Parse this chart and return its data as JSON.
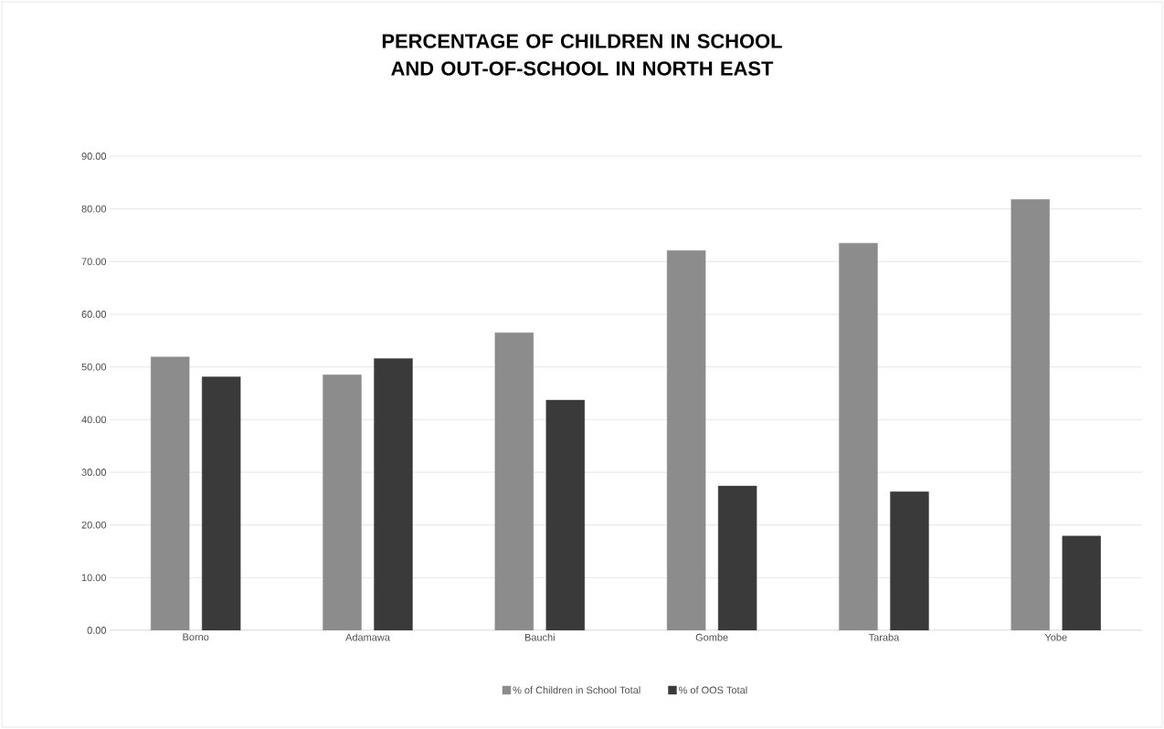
{
  "chart_data": {
    "type": "bar",
    "title": "PERCENTAGE OF CHILDREN IN SCHOOL AND OUT-OF-SCHOOL IN NORTH EAST",
    "categories": [
      "Borno",
      "Adamawa",
      "Bauchi",
      "Gombe",
      "Taraba",
      "Yobe"
    ],
    "series": [
      {
        "name": "% of Children in School Total",
        "color": "#8c8c8c",
        "values": [
          51.9,
          48.5,
          56.5,
          72.1,
          73.5,
          81.8
        ]
      },
      {
        "name": "% of OOS Total",
        "color": "#3a3a3a",
        "values": [
          48.1,
          51.6,
          43.7,
          27.4,
          26.3,
          17.9
        ]
      }
    ],
    "ylim": [
      0,
      90
    ],
    "yticks": [
      {
        "value": 0,
        "label": "0.00"
      },
      {
        "value": 10,
        "label": "10.00"
      },
      {
        "value": 20,
        "label": "20.00"
      },
      {
        "value": 30,
        "label": "30.00"
      },
      {
        "value": 40,
        "label": "40.00"
      },
      {
        "value": 50,
        "label": "50.00"
      },
      {
        "value": 60,
        "label": "60.00"
      },
      {
        "value": 70,
        "label": "70.00"
      },
      {
        "value": 80,
        "label": "80.00"
      },
      {
        "value": 90,
        "label": "90.00"
      }
    ],
    "grid": "y",
    "legend": "bottom"
  }
}
